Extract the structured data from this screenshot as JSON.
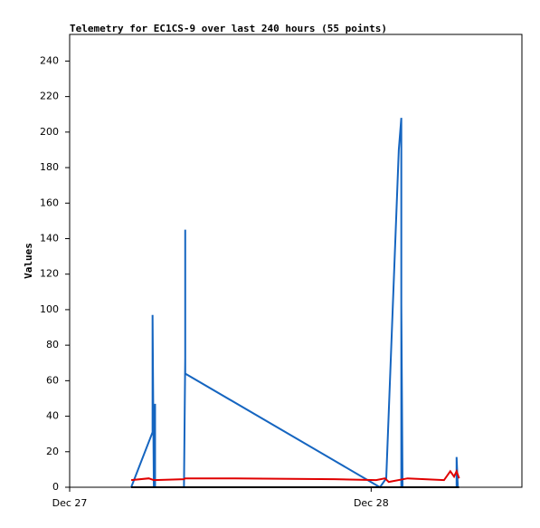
{
  "chart_data": {
    "type": "line",
    "title": "Telemetry for EC1CS-9 over last 240 hours (55 points)",
    "y_label": "Values",
    "xlim": [
      0,
      36
    ],
    "xticks": [
      {
        "value": 0,
        "label": "Dec 27"
      },
      {
        "value": 24,
        "label": "Dec 28"
      }
    ],
    "ylim": [
      0,
      255
    ],
    "yticks": [
      0,
      20,
      40,
      60,
      80,
      100,
      120,
      140,
      160,
      180,
      200,
      220,
      240
    ],
    "grid": false,
    "series": [
      {
        "color": "#1565c0",
        "x": [
          4.9,
          6.6,
          6.6,
          6.7,
          6.8,
          6.8,
          9.1,
          9.2,
          9.2,
          9.2,
          24.7,
          25.2,
          26.2,
          26.4,
          26.4,
          26.4,
          26.5,
          30.8,
          30.8,
          30.9
        ],
        "values": [
          0,
          31,
          97,
          0,
          47,
          0,
          0,
          73,
          145,
          64,
          0,
          5,
          190,
          208,
          0,
          103,
          0,
          0,
          17,
          0
        ]
      },
      {
        "color": "#e00000",
        "x": [
          4.9,
          6.3,
          6.7,
          9.1,
          9.2,
          13.2,
          21.1,
          24.4,
          25.1,
          25.4,
          26.9,
          29.8,
          30.3,
          30.6,
          30.8,
          31.0
        ],
        "values": [
          4,
          5,
          4,
          4.5,
          5,
          5,
          4.5,
          4,
          5,
          3,
          5,
          4,
          9,
          6,
          9,
          5
        ]
      },
      {
        "color": "#000000",
        "x": [
          4.9,
          31.0
        ],
        "values": [
          0,
          0
        ]
      }
    ]
  }
}
